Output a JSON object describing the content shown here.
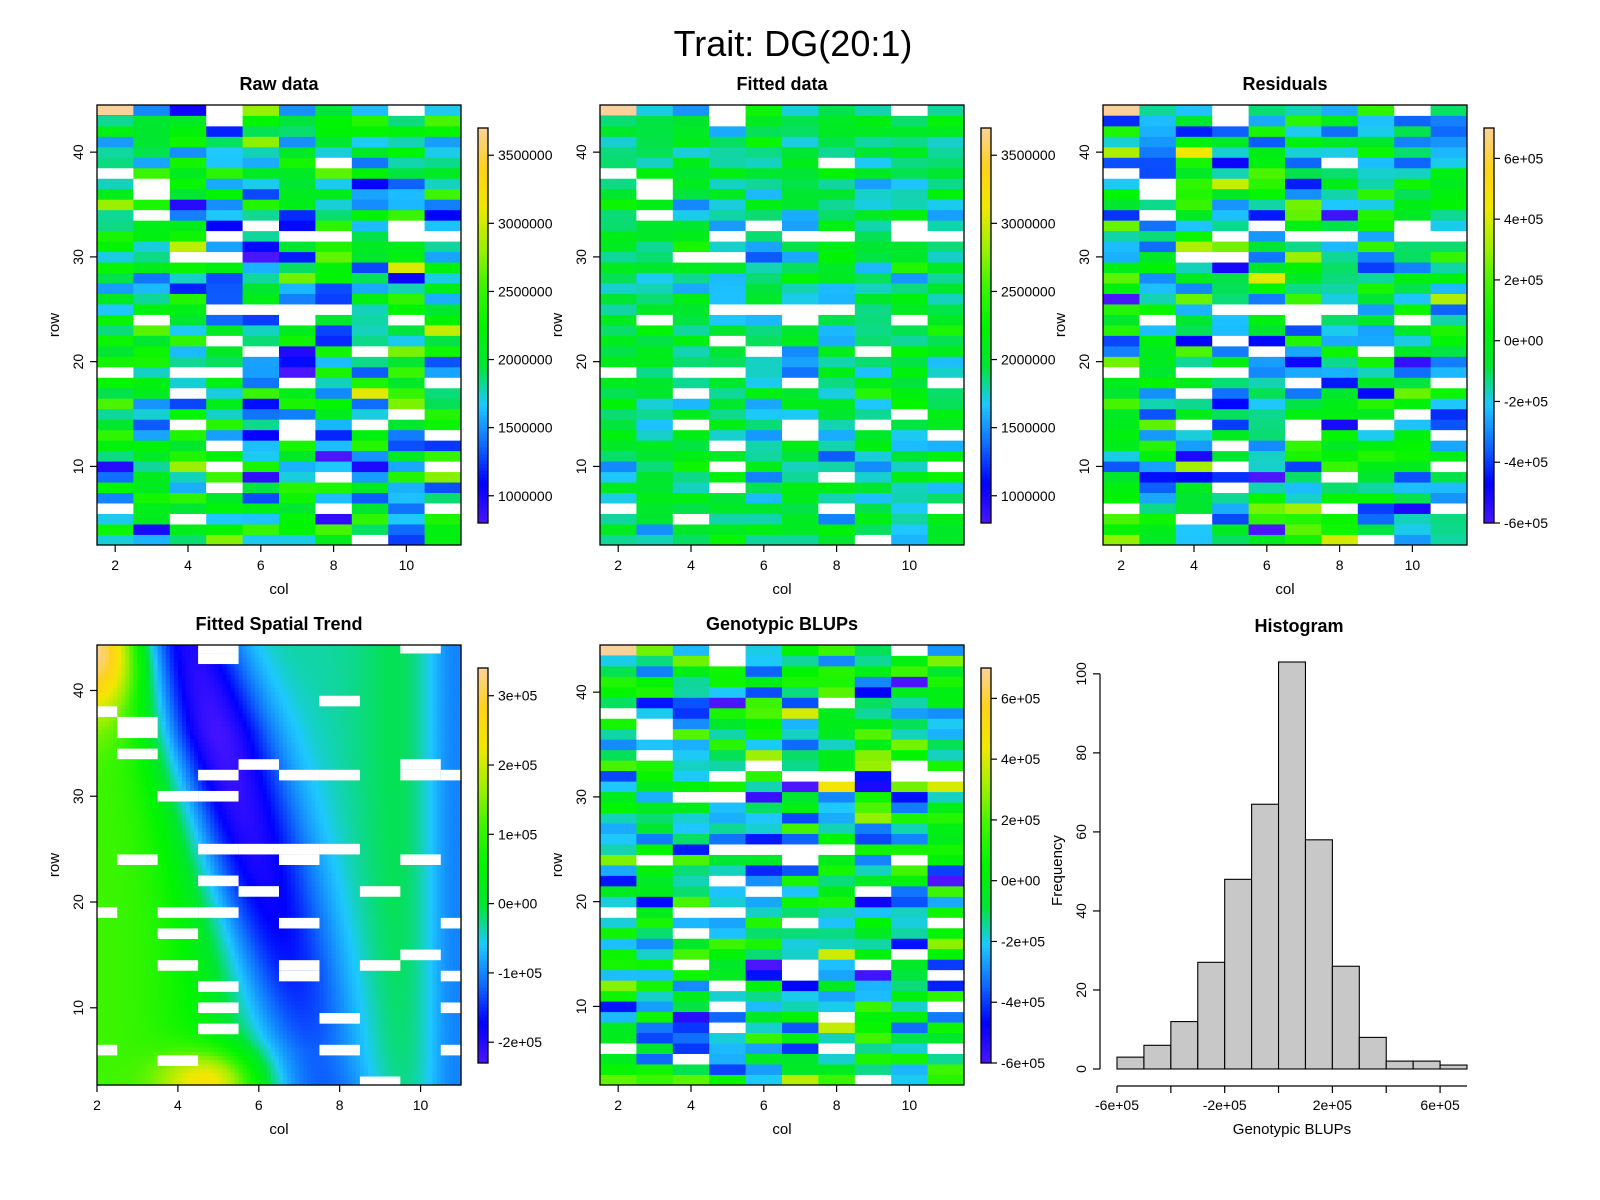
{
  "figure": {
    "title": "Trait: DG(20:1)"
  },
  "palette": {
    "stops": [
      "#4b16ff",
      "#0000ff",
      "#0f6bff",
      "#1ec8ff",
      "#00e632",
      "#00f500",
      "#3cf500",
      "#a0f000",
      "#f0e800",
      "#ffd21a",
      "#fcd29a"
    ],
    "na_color": "#ffffff"
  },
  "chart_data": [
    {
      "type": "heatmap",
      "id": "raw",
      "title": "Raw data",
      "xlabel": "col",
      "ylabel": "row",
      "xlim": [
        1.5,
        11.5
      ],
      "ylim": [
        2.5,
        44.5
      ],
      "xticks": [
        "2",
        "4",
        "6",
        "8",
        "10"
      ],
      "xtick_values": [
        2,
        4,
        6,
        8,
        10
      ],
      "yticks": [
        "10",
        "20",
        "30",
        "40"
      ],
      "ytick_values": [
        10,
        20,
        30,
        40
      ],
      "legend_ticks": [
        "1000000",
        "1500000",
        "2000000",
        "2500000",
        "3000000",
        "3500000"
      ],
      "legend_tick_values": [
        1000000,
        1500000,
        2000000,
        2500000,
        3000000,
        3500000
      ],
      "zlim": [
        800000,
        3700000
      ],
      "field": "random",
      "seed": 11
    },
    {
      "type": "heatmap",
      "id": "fitted",
      "title": "Fitted data",
      "xlabel": "col",
      "ylabel": "row",
      "xlim": [
        1.5,
        11.5
      ],
      "ylim": [
        2.5,
        44.5
      ],
      "xticks": [
        "2",
        "4",
        "6",
        "8",
        "10"
      ],
      "xtick_values": [
        2,
        4,
        6,
        8,
        10
      ],
      "yticks": [
        "10",
        "20",
        "30",
        "40"
      ],
      "ytick_values": [
        10,
        20,
        30,
        40
      ],
      "legend_ticks": [
        "1000000",
        "1500000",
        "2000000",
        "2500000",
        "3000000",
        "3500000"
      ],
      "legend_tick_values": [
        1000000,
        1500000,
        2000000,
        2500000,
        3000000,
        3500000
      ],
      "zlim": [
        800000,
        3700000
      ],
      "field": "smooth-random",
      "seed": 11
    },
    {
      "type": "heatmap",
      "id": "residuals",
      "title": "Residuals",
      "xlabel": "col",
      "ylabel": "row",
      "xlim": [
        1.5,
        11.5
      ],
      "ylim": [
        2.5,
        44.5
      ],
      "xticks": [
        "2",
        "4",
        "6",
        "8",
        "10"
      ],
      "xtick_values": [
        2,
        4,
        6,
        8,
        10
      ],
      "yticks": [
        "10",
        "20",
        "30",
        "40"
      ],
      "ytick_values": [
        10,
        20,
        30,
        40
      ],
      "legend_ticks": [
        "-6e+05",
        "-4e+05",
        "-2e+05",
        "0e+00",
        "2e+05",
        "4e+05",
        "6e+05"
      ],
      "legend_tick_values": [
        -600000,
        -400000,
        -200000,
        0,
        200000,
        400000,
        600000
      ],
      "zlim": [
        -600000,
        700000
      ],
      "field": "random",
      "seed": 23
    },
    {
      "type": "heatmap",
      "id": "spatial",
      "title": "Fitted Spatial Trend",
      "xlabel": "col",
      "ylabel": "row",
      "xlim": [
        2,
        11
      ],
      "ylim": [
        2.7,
        44.3
      ],
      "xticks": [
        "2",
        "4",
        "6",
        "8",
        "10"
      ],
      "xtick_values": [
        2,
        4,
        6,
        8,
        10
      ],
      "yticks": [
        "10",
        "20",
        "30",
        "40"
      ],
      "ytick_values": [
        10,
        20,
        30,
        40
      ],
      "legend_ticks": [
        "-2e+05",
        "-1e+05",
        "0e+00",
        "1e+05",
        "2e+05",
        "3e+05"
      ],
      "legend_tick_values": [
        -200000,
        -100000,
        0,
        100000,
        200000,
        300000
      ],
      "zlim": [
        -230000,
        340000
      ],
      "field": "smooth-trend",
      "seed": 5
    },
    {
      "type": "heatmap",
      "id": "blups",
      "title": "Genotypic BLUPs",
      "xlabel": "col",
      "ylabel": "row",
      "xlim": [
        1.5,
        11.5
      ],
      "ylim": [
        2.5,
        44.5
      ],
      "xticks": [
        "2",
        "4",
        "6",
        "8",
        "10"
      ],
      "xtick_values": [
        2,
        4,
        6,
        8,
        10
      ],
      "yticks": [
        "10",
        "20",
        "30",
        "40"
      ],
      "ytick_values": [
        10,
        20,
        30,
        40
      ],
      "legend_ticks": [
        "-6e+05",
        "-4e+05",
        "-2e+05",
        "0e+00",
        "2e+05",
        "4e+05",
        "6e+05"
      ],
      "legend_tick_values": [
        -600000,
        -400000,
        -200000,
        0,
        200000,
        400000,
        600000
      ],
      "zlim": [
        -600000,
        700000
      ],
      "field": "random",
      "seed": 37
    },
    {
      "type": "bar",
      "id": "histogram",
      "title": "Histogram",
      "xlabel": "Genotypic BLUPs",
      "ylabel": "Frequency",
      "bin_edges": [
        -600000,
        -500000,
        -400000,
        -300000,
        -200000,
        -100000,
        0,
        100000,
        200000,
        300000,
        400000,
        500000,
        600000,
        700000
      ],
      "values": [
        3,
        6,
        12,
        27,
        48,
        67,
        103,
        58,
        26,
        8,
        2,
        2,
        1
      ],
      "xlim": [
        -600000,
        700000
      ],
      "ylim": [
        0,
        103
      ],
      "xticks": [
        "-6e+05",
        "-2e+05",
        "2e+05",
        "6e+05"
      ],
      "xtick_values": [
        -600000,
        -200000,
        200000,
        600000
      ],
      "yticks": [
        "0",
        "20",
        "40",
        "60",
        "80",
        "100"
      ],
      "ytick_values": [
        0,
        20,
        40,
        60,
        80,
        100
      ],
      "bar_color": "#c8c8c8"
    }
  ]
}
